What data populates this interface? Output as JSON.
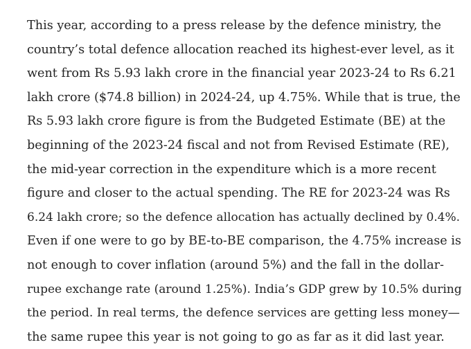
{
  "article": {
    "lines": [
      "This year, according to a press release by the defence ministry, the",
      "country’s total defence allocation reached its highest-ever level, as it",
      "went from Rs 5.93 lakh crore in the financial year 2023-24 to Rs 6.21",
      "lakh crore ($74.8 billion) in 2024-24, up 4.75%. While that is true, the",
      "Rs 5.93 lakh crore figure is from the Budgeted Estimate (BE) at the",
      "beginning of the 2023-24 fiscal and not from Revised Estimate (RE),",
      "the mid-year correction in the expenditure which is a more recent",
      "figure and closer to the actual spending. The RE for 2023-24 was Rs",
      "6.24 lakh crore; so the defence allocation has actually declined by 0.4%.",
      "Even if one were to go by BE-to-BE comparison, the 4.75% increase is",
      "not enough to cover inflation (around 5%) and the fall in the dollar-",
      "rupee exchange rate (around 1.25%). India’s GDP grew by 10.5% during",
      "the period. In real terms, the defence services are getting less money—",
      "the same rupee this year is not going to go as far as it did last year."
    ]
  }
}
